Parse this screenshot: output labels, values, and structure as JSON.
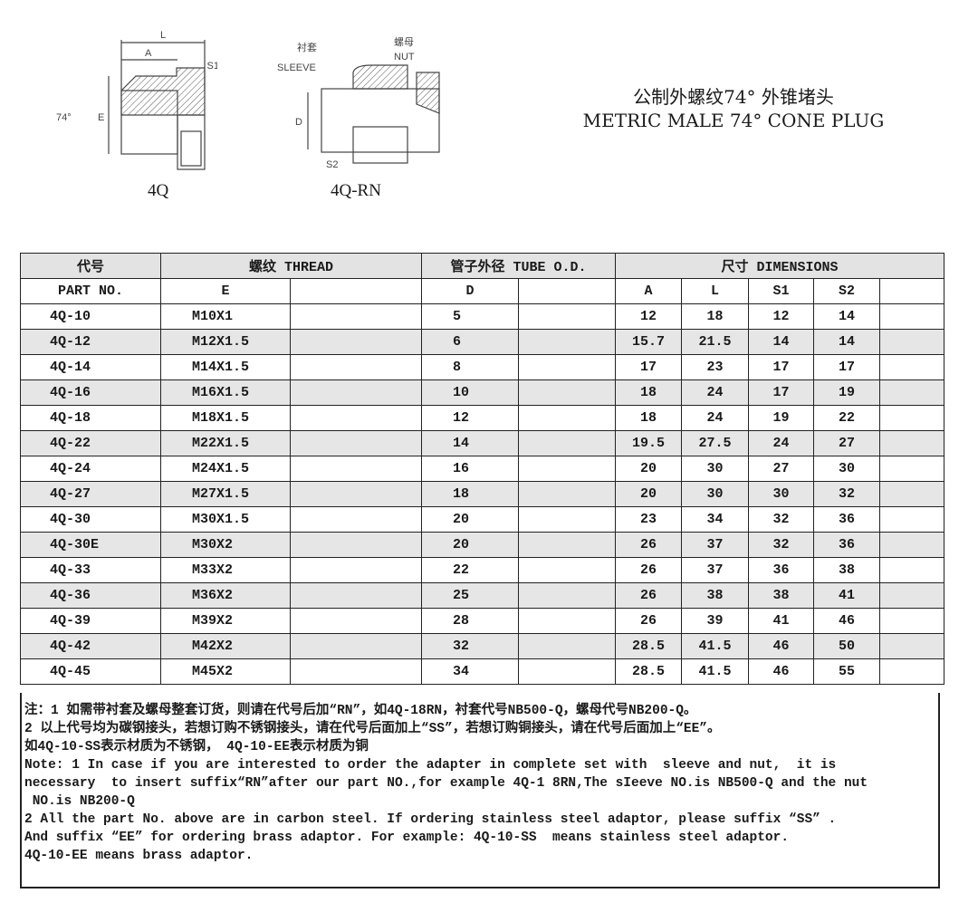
{
  "drawings": [
    {
      "caption": "4Q",
      "labels": {
        "L": "L",
        "A": "A",
        "S1": "S1",
        "angle": "74°",
        "E": "E"
      }
    },
    {
      "caption": "4Q-RN",
      "labels": {
        "sleeve_cn": "衬套",
        "sleeve": "SLEEVE",
        "nut_cn": "螺母",
        "nut": "NUT",
        "D": "D",
        "S2": "S2"
      }
    }
  ],
  "title": {
    "cn": "公制外螺纹74° 外锥堵头",
    "en": "METRIC MALE 74° CONE PLUG"
  },
  "table": {
    "header1": {
      "part": "代号",
      "thread": "螺纹 THREAD",
      "tube": "管子外径 TUBE O.D.",
      "dims": "尺寸  DIMENSIONS"
    },
    "header2": {
      "part": "PART NO.",
      "E": "E",
      "D": "D",
      "A": "A",
      "L": "L",
      "S1": "S1",
      "S2": "S2"
    },
    "rows": [
      [
        "4Q-10",
        "M10X1",
        "5",
        "12",
        "18",
        "12",
        "14"
      ],
      [
        "4Q-12",
        "M12X1.5",
        "6",
        "15.7",
        "21.5",
        "14",
        "14"
      ],
      [
        "4Q-14",
        "M14X1.5",
        "8",
        "17",
        "23",
        "17",
        "17"
      ],
      [
        "4Q-16",
        "M16X1.5",
        "10",
        "18",
        "24",
        "17",
        "19"
      ],
      [
        "4Q-18",
        "M18X1.5",
        "12",
        "18",
        "24",
        "19",
        "22"
      ],
      [
        "4Q-22",
        "M22X1.5",
        "14",
        "19.5",
        "27.5",
        "24",
        "27"
      ],
      [
        "4Q-24",
        "M24X1.5",
        "16",
        "20",
        "30",
        "27",
        "30"
      ],
      [
        "4Q-27",
        "M27X1.5",
        "18",
        "20",
        "30",
        "30",
        "32"
      ],
      [
        "4Q-30",
        "M30X1.5",
        "20",
        "23",
        "34",
        "32",
        "36"
      ],
      [
        "4Q-30E",
        "M30X2",
        "20",
        "26",
        "37",
        "32",
        "36"
      ],
      [
        "4Q-33",
        "M33X2",
        "22",
        "26",
        "37",
        "36",
        "38"
      ],
      [
        "4Q-36",
        "M36X2",
        "25",
        "26",
        "38",
        "38",
        "41"
      ],
      [
        "4Q-39",
        "M39X2",
        "28",
        "26",
        "39",
        "41",
        "46"
      ],
      [
        "4Q-42",
        "M42X2",
        "32",
        "28.5",
        "41.5",
        "46",
        "50"
      ],
      [
        "4Q-45",
        "M45X2",
        "34",
        "28.5",
        "41.5",
        "46",
        "55"
      ]
    ]
  },
  "notes": [
    "注：1 如需带衬套及螺母整套订货，则请在代号后加“RN”，如4Q-18RN，衬套代号NB500-Q，螺母代号NB200-Q。",
    "2 以上代号均为碳钢接头，若想订购不锈钢接头，请在代号后面加上“SS”，若想订购铜接头，请在代号后面加上“EE”。",
    "如4Q-10-SS表示材质为不锈钢， 4Q-10-EE表示材质为铜",
    "Note: 1 In case if you are interested to order the adapter in complete set with  sleeve and nut,  it is",
    "necessary  to insert suffix“RN”after our part NO.,for example 4Q-1 8RN,The sIeeve NO.is NB500-Q and the nut",
    " NO.is NB200-Q",
    "2 All the part No. above are in carbon steel. If ordering stainless steel adaptor, please suffix “SS” .",
    "And suffix “EE” for ordering brass adaptor. For example: 4Q-10-SS  means stainless steel adaptor.",
    "4Q-10-EE means brass adaptor."
  ]
}
